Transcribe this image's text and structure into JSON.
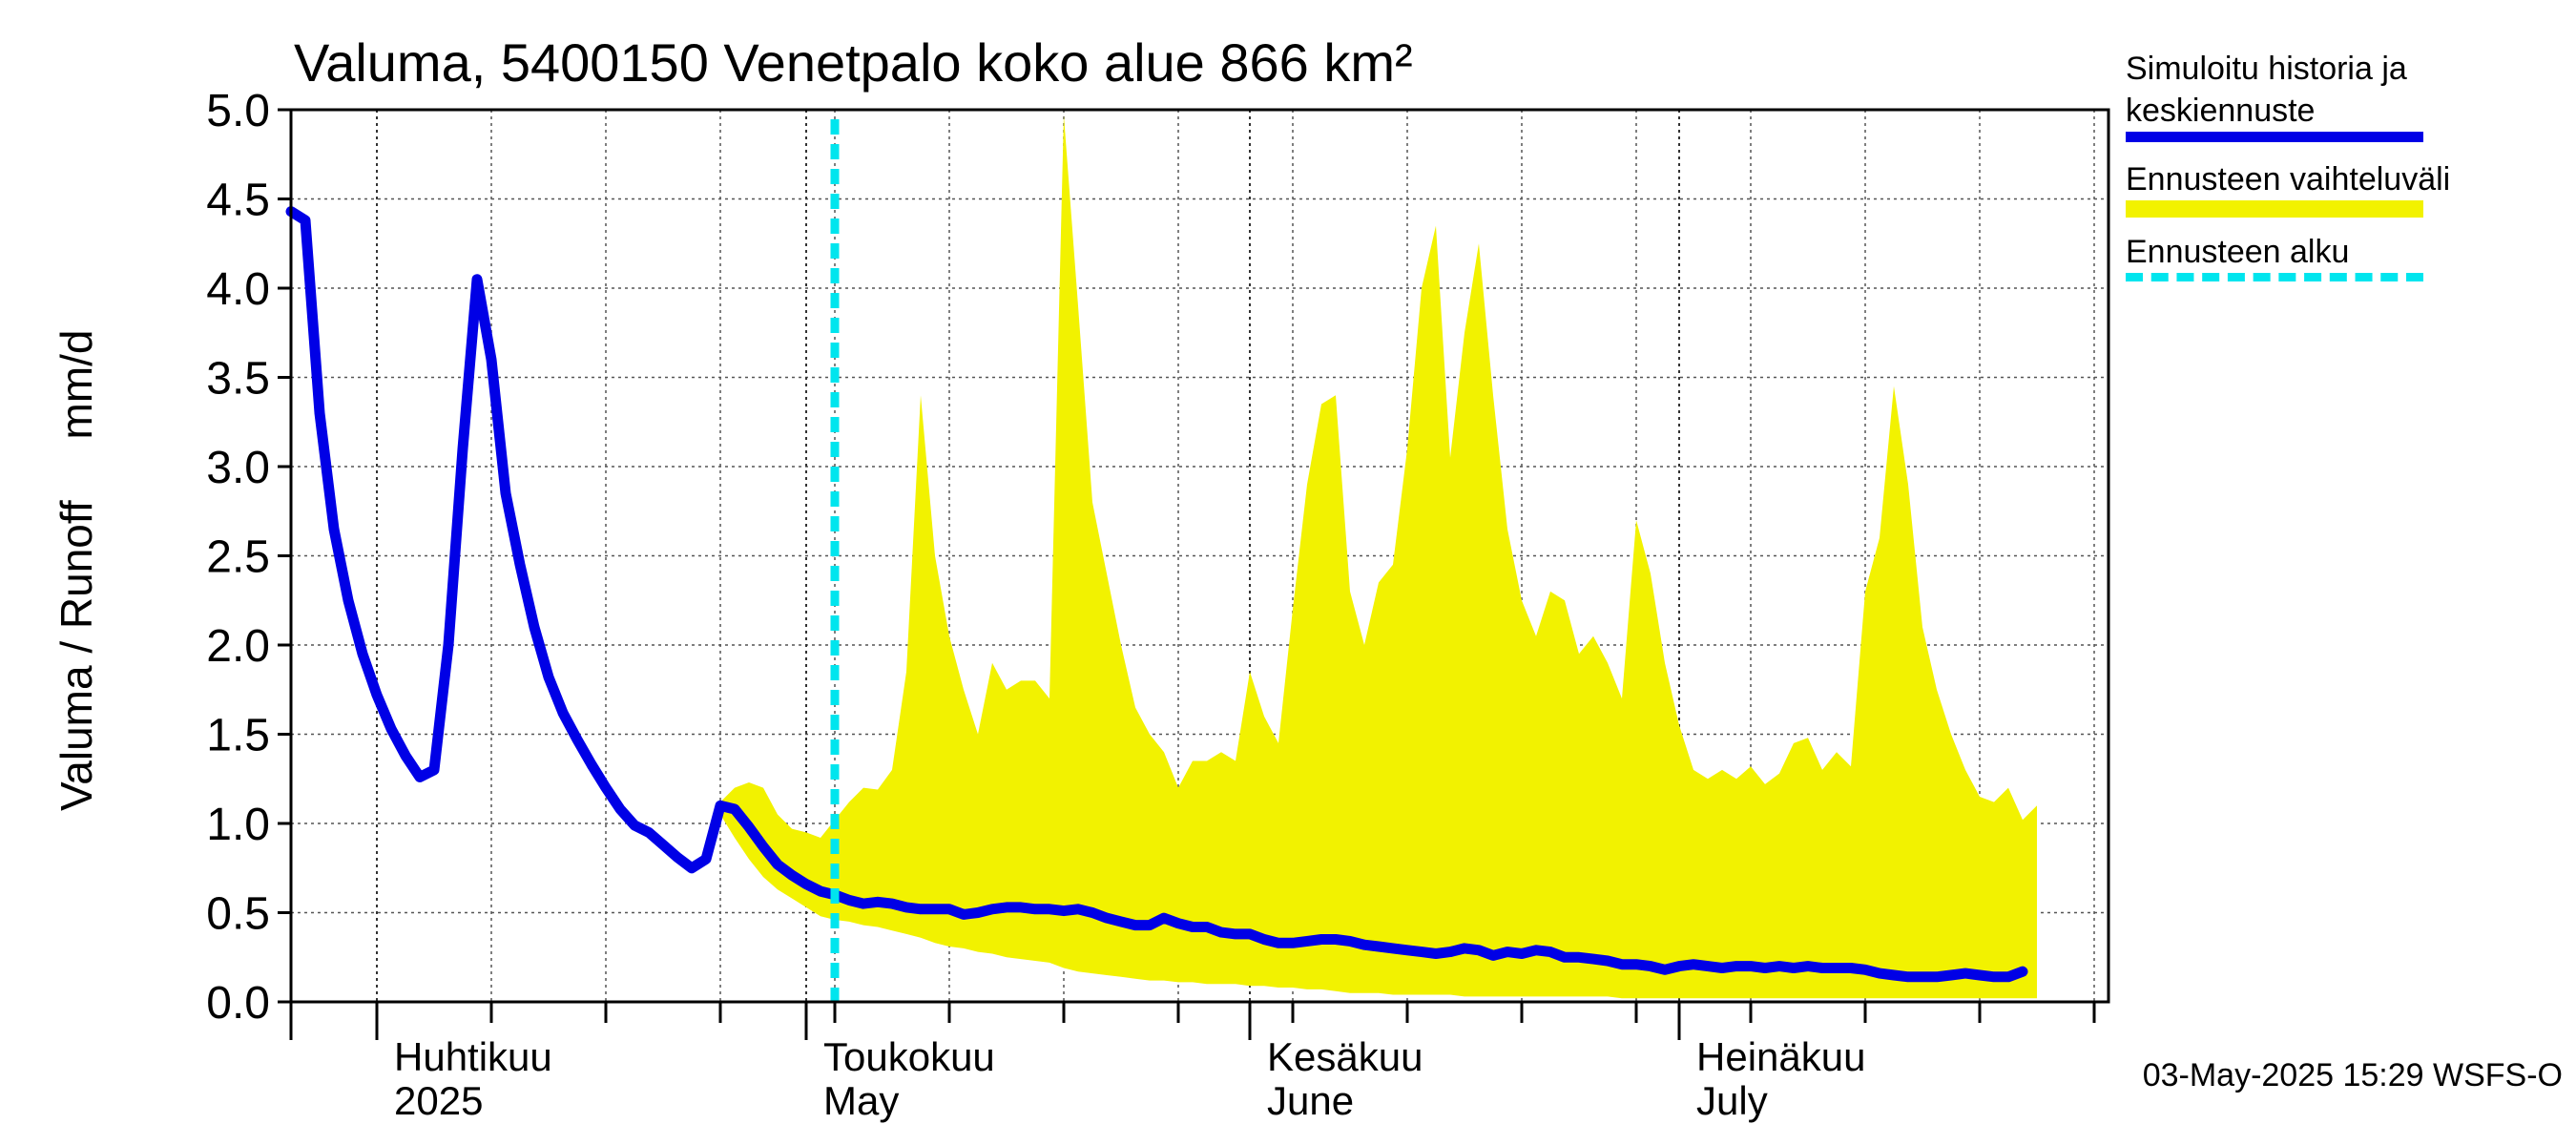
{
  "chart_data": {
    "type": "area+line",
    "title": "Valuma, 5400150 Venetpalo koko alue 866 km²",
    "ylabel": "Valuma / Runoff     mm/d",
    "ylim": [
      0,
      5.0
    ],
    "yticks": [
      "0.0",
      "0.5",
      "1.0",
      "1.5",
      "2.0",
      "2.5",
      "3.0",
      "3.5",
      "4.0",
      "4.5",
      "5.0"
    ],
    "x_start_date": "2025-03-26",
    "x_end_date": "2025-07-31",
    "forecast_start_day": 38,
    "month_labels": [
      {
        "day": 6,
        "line1": "Huhtikuu",
        "line2": "2025"
      },
      {
        "day": 36,
        "line1": "Toukokuu",
        "line2": "May"
      },
      {
        "day": 67,
        "line1": "Kesäkuu",
        "line2": "June"
      },
      {
        "day": 97,
        "line1": "Heinäkuu",
        "line2": "July"
      }
    ],
    "series": [
      {
        "name": "Simuloitu historia ja keskiennuste",
        "color": "#0000e6",
        "points": [
          [
            0,
            4.43
          ],
          [
            1,
            4.38
          ],
          [
            2,
            3.3
          ],
          [
            3,
            2.65
          ],
          [
            4,
            2.25
          ],
          [
            5,
            1.95
          ],
          [
            6,
            1.72
          ],
          [
            7,
            1.53
          ],
          [
            8,
            1.38
          ],
          [
            9,
            1.26
          ],
          [
            10,
            1.3
          ],
          [
            11,
            2.0
          ],
          [
            12,
            3.1
          ],
          [
            13,
            4.05
          ],
          [
            14,
            3.6
          ],
          [
            15,
            2.85
          ],
          [
            16,
            2.45
          ],
          [
            17,
            2.1
          ],
          [
            18,
            1.82
          ],
          [
            19,
            1.62
          ],
          [
            20,
            1.47
          ],
          [
            21,
            1.33
          ],
          [
            22,
            1.2
          ],
          [
            23,
            1.08
          ],
          [
            24,
            0.99
          ],
          [
            25,
            0.95
          ],
          [
            26,
            0.88
          ],
          [
            27,
            0.81
          ],
          [
            28,
            0.75
          ],
          [
            29,
            0.8
          ],
          [
            30,
            1.1
          ],
          [
            31,
            1.08
          ],
          [
            32,
            0.98
          ],
          [
            33,
            0.87
          ],
          [
            34,
            0.77
          ],
          [
            35,
            0.71
          ],
          [
            36,
            0.66
          ],
          [
            37,
            0.62
          ],
          [
            38,
            0.6
          ],
          [
            39,
            0.57
          ],
          [
            40,
            0.55
          ],
          [
            41,
            0.56
          ],
          [
            42,
            0.55
          ],
          [
            43,
            0.53
          ],
          [
            44,
            0.52
          ],
          [
            45,
            0.52
          ],
          [
            46,
            0.52
          ],
          [
            47,
            0.49
          ],
          [
            48,
            0.5
          ],
          [
            49,
            0.52
          ],
          [
            50,
            0.53
          ],
          [
            51,
            0.53
          ],
          [
            52,
            0.52
          ],
          [
            53,
            0.52
          ],
          [
            54,
            0.51
          ],
          [
            55,
            0.52
          ],
          [
            56,
            0.5
          ],
          [
            57,
            0.47
          ],
          [
            58,
            0.45
          ],
          [
            59,
            0.43
          ],
          [
            60,
            0.43
          ],
          [
            61,
            0.47
          ],
          [
            62,
            0.44
          ],
          [
            63,
            0.42
          ],
          [
            64,
            0.42
          ],
          [
            65,
            0.39
          ],
          [
            66,
            0.38
          ],
          [
            67,
            0.38
          ],
          [
            68,
            0.35
          ],
          [
            69,
            0.33
          ],
          [
            70,
            0.33
          ],
          [
            71,
            0.34
          ],
          [
            72,
            0.35
          ],
          [
            73,
            0.35
          ],
          [
            74,
            0.34
          ],
          [
            75,
            0.32
          ],
          [
            76,
            0.31
          ],
          [
            77,
            0.3
          ],
          [
            78,
            0.29
          ],
          [
            79,
            0.28
          ],
          [
            80,
            0.27
          ],
          [
            81,
            0.28
          ],
          [
            82,
            0.3
          ],
          [
            83,
            0.29
          ],
          [
            84,
            0.26
          ],
          [
            85,
            0.28
          ],
          [
            86,
            0.27
          ],
          [
            87,
            0.29
          ],
          [
            88,
            0.28
          ],
          [
            89,
            0.25
          ],
          [
            90,
            0.25
          ],
          [
            91,
            0.24
          ],
          [
            92,
            0.23
          ],
          [
            93,
            0.21
          ],
          [
            94,
            0.21
          ],
          [
            95,
            0.2
          ],
          [
            96,
            0.18
          ],
          [
            97,
            0.2
          ],
          [
            98,
            0.21
          ],
          [
            99,
            0.2
          ],
          [
            100,
            0.19
          ],
          [
            101,
            0.2
          ],
          [
            102,
            0.2
          ],
          [
            103,
            0.19
          ],
          [
            104,
            0.2
          ],
          [
            105,
            0.19
          ],
          [
            106,
            0.2
          ],
          [
            107,
            0.19
          ],
          [
            108,
            0.19
          ],
          [
            109,
            0.19
          ],
          [
            110,
            0.18
          ],
          [
            111,
            0.16
          ],
          [
            112,
            0.15
          ],
          [
            113,
            0.14
          ],
          [
            114,
            0.14
          ],
          [
            115,
            0.14
          ],
          [
            116,
            0.15
          ],
          [
            117,
            0.16
          ],
          [
            118,
            0.15
          ],
          [
            119,
            0.14
          ],
          [
            120,
            0.14
          ],
          [
            121,
            0.17
          ]
        ]
      },
      {
        "name": "Ennusteen vaihteluväli",
        "color": "#f2f200",
        "upper": [
          [
            30,
            1.12
          ],
          [
            31,
            1.2
          ],
          [
            32,
            1.23
          ],
          [
            33,
            1.2
          ],
          [
            34,
            1.05
          ],
          [
            35,
            0.97
          ],
          [
            36,
            0.95
          ],
          [
            37,
            0.92
          ],
          [
            38,
            1.02
          ],
          [
            39,
            1.12
          ],
          [
            40,
            1.2
          ],
          [
            41,
            1.19
          ],
          [
            42,
            1.3
          ],
          [
            43,
            1.85
          ],
          [
            44,
            3.4
          ],
          [
            45,
            2.5
          ],
          [
            46,
            2.05
          ],
          [
            47,
            1.75
          ],
          [
            48,
            1.5
          ],
          [
            49,
            1.9
          ],
          [
            50,
            1.75
          ],
          [
            51,
            1.8
          ],
          [
            52,
            1.8
          ],
          [
            53,
            1.7
          ],
          [
            54,
            4.97
          ],
          [
            55,
            3.9
          ],
          [
            56,
            2.8
          ],
          [
            57,
            2.4
          ],
          [
            58,
            2.0
          ],
          [
            59,
            1.65
          ],
          [
            60,
            1.5
          ],
          [
            61,
            1.4
          ],
          [
            62,
            1.2
          ],
          [
            63,
            1.35
          ],
          [
            64,
            1.35
          ],
          [
            65,
            1.4
          ],
          [
            66,
            1.35
          ],
          [
            67,
            1.85
          ],
          [
            68,
            1.6
          ],
          [
            69,
            1.45
          ],
          [
            70,
            2.2
          ],
          [
            71,
            2.9
          ],
          [
            72,
            3.35
          ],
          [
            73,
            3.4
          ],
          [
            74,
            2.3
          ],
          [
            75,
            2.0
          ],
          [
            76,
            2.35
          ],
          [
            77,
            2.45
          ],
          [
            78,
            3.1
          ],
          [
            79,
            4.0
          ],
          [
            80,
            4.35
          ],
          [
            81,
            3.05
          ],
          [
            82,
            3.75
          ],
          [
            83,
            4.25
          ],
          [
            84,
            3.4
          ],
          [
            85,
            2.65
          ],
          [
            86,
            2.25
          ],
          [
            87,
            2.05
          ],
          [
            88,
            2.3
          ],
          [
            89,
            2.25
          ],
          [
            90,
            1.95
          ],
          [
            91,
            2.05
          ],
          [
            92,
            1.9
          ],
          [
            93,
            1.7
          ],
          [
            94,
            2.7
          ],
          [
            95,
            2.4
          ],
          [
            96,
            1.9
          ],
          [
            97,
            1.55
          ],
          [
            98,
            1.3
          ],
          [
            99,
            1.25
          ],
          [
            100,
            1.3
          ],
          [
            101,
            1.25
          ],
          [
            102,
            1.32
          ],
          [
            103,
            1.22
          ],
          [
            104,
            1.28
          ],
          [
            105,
            1.45
          ],
          [
            106,
            1.48
          ],
          [
            107,
            1.3
          ],
          [
            108,
            1.4
          ],
          [
            109,
            1.32
          ],
          [
            110,
            2.3
          ],
          [
            111,
            2.6
          ],
          [
            112,
            3.45
          ],
          [
            113,
            2.9
          ],
          [
            114,
            2.1
          ],
          [
            115,
            1.75
          ],
          [
            116,
            1.5
          ],
          [
            117,
            1.3
          ],
          [
            118,
            1.15
          ],
          [
            119,
            1.12
          ],
          [
            120,
            1.2
          ],
          [
            121,
            1.02
          ],
          [
            122,
            1.1
          ]
        ],
        "lower": [
          [
            30,
            1.05
          ],
          [
            31,
            0.92
          ],
          [
            32,
            0.8
          ],
          [
            33,
            0.7
          ],
          [
            34,
            0.63
          ],
          [
            35,
            0.58
          ],
          [
            36,
            0.53
          ],
          [
            37,
            0.48
          ],
          [
            38,
            0.46
          ],
          [
            39,
            0.45
          ],
          [
            40,
            0.43
          ],
          [
            41,
            0.42
          ],
          [
            42,
            0.4
          ],
          [
            43,
            0.38
          ],
          [
            44,
            0.36
          ],
          [
            45,
            0.33
          ],
          [
            46,
            0.31
          ],
          [
            47,
            0.3
          ],
          [
            48,
            0.28
          ],
          [
            49,
            0.27
          ],
          [
            50,
            0.25
          ],
          [
            51,
            0.24
          ],
          [
            52,
            0.23
          ],
          [
            53,
            0.22
          ],
          [
            54,
            0.19
          ],
          [
            55,
            0.17
          ],
          [
            56,
            0.16
          ],
          [
            57,
            0.15
          ],
          [
            58,
            0.14
          ],
          [
            59,
            0.13
          ],
          [
            60,
            0.12
          ],
          [
            61,
            0.12
          ],
          [
            62,
            0.11
          ],
          [
            63,
            0.11
          ],
          [
            64,
            0.1
          ],
          [
            65,
            0.1
          ],
          [
            66,
            0.1
          ],
          [
            67,
            0.09
          ],
          [
            68,
            0.09
          ],
          [
            69,
            0.08
          ],
          [
            70,
            0.08
          ],
          [
            71,
            0.07
          ],
          [
            72,
            0.07
          ],
          [
            73,
            0.06
          ],
          [
            74,
            0.05
          ],
          [
            75,
            0.05
          ],
          [
            76,
            0.05
          ],
          [
            77,
            0.04
          ],
          [
            78,
            0.04
          ],
          [
            79,
            0.04
          ],
          [
            80,
            0.04
          ],
          [
            81,
            0.04
          ],
          [
            82,
            0.03
          ],
          [
            83,
            0.03
          ],
          [
            84,
            0.03
          ],
          [
            85,
            0.03
          ],
          [
            86,
            0.03
          ],
          [
            87,
            0.03
          ],
          [
            88,
            0.03
          ],
          [
            89,
            0.03
          ],
          [
            90,
            0.03
          ],
          [
            91,
            0.03
          ],
          [
            92,
            0.03
          ],
          [
            93,
            0.02
          ],
          [
            94,
            0.02
          ],
          [
            95,
            0.02
          ],
          [
            96,
            0.02
          ],
          [
            97,
            0.02
          ],
          [
            98,
            0.02
          ],
          [
            99,
            0.02
          ],
          [
            100,
            0.02
          ],
          [
            101,
            0.02
          ],
          [
            102,
            0.02
          ],
          [
            103,
            0.02
          ],
          [
            104,
            0.02
          ],
          [
            105,
            0.02
          ],
          [
            106,
            0.02
          ],
          [
            107,
            0.02
          ],
          [
            108,
            0.02
          ],
          [
            109,
            0.02
          ],
          [
            110,
            0.02
          ],
          [
            111,
            0.02
          ],
          [
            112,
            0.02
          ],
          [
            113,
            0.02
          ],
          [
            114,
            0.02
          ],
          [
            115,
            0.02
          ],
          [
            116,
            0.02
          ],
          [
            117,
            0.02
          ],
          [
            118,
            0.02
          ],
          [
            119,
            0.02
          ],
          [
            120,
            0.02
          ],
          [
            121,
            0.02
          ],
          [
            122,
            0.02
          ]
        ]
      },
      {
        "name": "Ennusteen alku",
        "color": "#00e5ee"
      }
    ]
  },
  "legend": {
    "history_line1": "Simuloitu historia ja",
    "history_line2": "keskiennuste",
    "range_label": "Ennusteen vaihteluväli",
    "start_label": "Ennusteen alku"
  },
  "footer": "03-May-2025 15:29 WSFS-O"
}
